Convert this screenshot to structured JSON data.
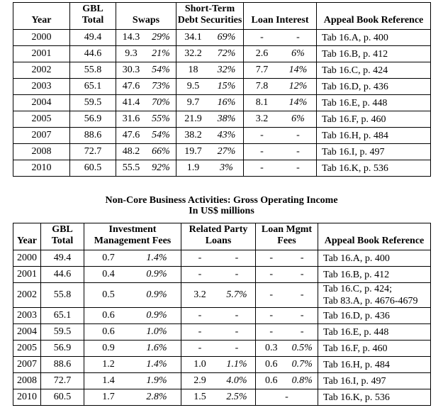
{
  "document": {
    "second_table_title": [
      "Non-Core Business Activities: Gross Operating Income",
      "In US$ millions"
    ]
  },
  "tables": [
    {
      "id": "table-gross-trading-income",
      "columns": [
        {
          "key": "year",
          "label": [
            "Year"
          ],
          "type": "text"
        },
        {
          "key": "gbl_total",
          "label": [
            "GBL",
            "Total"
          ],
          "type": "text"
        },
        {
          "key": "swaps",
          "label": [
            "Swaps"
          ],
          "type": "pair"
        },
        {
          "key": "short_term_debt_securities",
          "label": [
            "Short-Term",
            "Debt Securities"
          ],
          "type": "pair"
        },
        {
          "key": "loan_interest",
          "label": [
            "Loan Interest"
          ],
          "type": "pair"
        },
        {
          "key": "reference",
          "label": [
            "Appeal Book Reference"
          ],
          "type": "ref"
        }
      ],
      "rows": [
        {
          "year": "2000",
          "gbl_total": "49.4",
          "pairs": [
            [
              "14.3",
              "29%"
            ],
            [
              "34.1",
              "69%"
            ],
            [
              "-",
              "-"
            ]
          ],
          "reference": [
            "Tab 16.A, p. 400"
          ]
        },
        {
          "year": "2001",
          "gbl_total": "44.6",
          "pairs": [
            [
              "9.3",
              "21%"
            ],
            [
              "32.2",
              "72%"
            ],
            [
              "2.6",
              "6%"
            ]
          ],
          "reference": [
            "Tab 16.B, p. 412"
          ]
        },
        {
          "year": "2002",
          "gbl_total": "55.8",
          "pairs": [
            [
              "30.3",
              "54%"
            ],
            [
              "18",
              "32%"
            ],
            [
              "7.7",
              "14%"
            ]
          ],
          "reference": [
            "Tab 16.C, p. 424"
          ]
        },
        {
          "year": "2003",
          "gbl_total": "65.1",
          "pairs": [
            [
              "47.6",
              "73%"
            ],
            [
              "9.5",
              "15%"
            ],
            [
              "7.8",
              "12%"
            ]
          ],
          "reference": [
            "Tab 16.D, p. 436"
          ]
        },
        {
          "year": "2004",
          "gbl_total": "59.5",
          "pairs": [
            [
              "41.4",
              "70%"
            ],
            [
              "9.7",
              "16%"
            ],
            [
              "8.1",
              "14%"
            ]
          ],
          "reference": [
            "Tab 16.E, p. 448"
          ]
        },
        {
          "year": "2005",
          "gbl_total": "56.9",
          "pairs": [
            [
              "31.6",
              "55%"
            ],
            [
              "21.9",
              "38%"
            ],
            [
              "3.2",
              "6%"
            ]
          ],
          "reference": [
            "Tab 16.F, p. 460"
          ]
        },
        {
          "year": "2007",
          "gbl_total": "88.6",
          "pairs": [
            [
              "47.6",
              "54%"
            ],
            [
              "38.2",
              "43%"
            ],
            [
              "-",
              "-"
            ]
          ],
          "reference": [
            "Tab 16.H, p. 484"
          ]
        },
        {
          "year": "2008",
          "gbl_total": "72.7",
          "pairs": [
            [
              "48.2",
              "66%"
            ],
            [
              "19.7",
              "27%"
            ],
            [
              "-",
              "-"
            ]
          ],
          "reference": [
            "Tab 16.I, p. 497"
          ]
        },
        {
          "year": "2010",
          "gbl_total": "60.5",
          "pairs": [
            [
              "55.5",
              "92%"
            ],
            [
              "1.9",
              "3%"
            ],
            [
              "-",
              "-"
            ]
          ],
          "reference": [
            "Tab 16.K, p. 536"
          ]
        }
      ]
    },
    {
      "id": "table-gross-operating-income",
      "columns": [
        {
          "key": "year",
          "label": [
            "Year"
          ],
          "type": "text"
        },
        {
          "key": "gbl_total",
          "label": [
            "GBL",
            "Total"
          ],
          "type": "text"
        },
        {
          "key": "investment_management_fees",
          "label": [
            "Investment",
            "Management Fees"
          ],
          "type": "pair"
        },
        {
          "key": "related_party_loans",
          "label": [
            "Related Party",
            "Loans"
          ],
          "type": "pair"
        },
        {
          "key": "loan_mgmt_fees",
          "label": [
            "Loan Mgmt",
            "Fees"
          ],
          "type": "pair"
        },
        {
          "key": "reference",
          "label": [
            "Appeal Book Reference"
          ],
          "type": "ref"
        }
      ],
      "rows": [
        {
          "year": "2000",
          "gbl_total": "49.4",
          "pairs": [
            [
              "0.7",
              "1.4%"
            ],
            [
              "-",
              "-"
            ],
            [
              "-",
              "-"
            ]
          ],
          "reference": [
            "Tab 16.A, p. 400"
          ]
        },
        {
          "year": "2001",
          "gbl_total": "44.6",
          "pairs": [
            [
              "0.4",
              "0.9%"
            ],
            [
              "-",
              "-"
            ],
            [
              "-",
              "-"
            ]
          ],
          "reference": [
            "Tab 16.B, p. 412"
          ]
        },
        {
          "year": "2002",
          "gbl_total": "55.8",
          "pairs": [
            [
              "0.5",
              "0.9%"
            ],
            [
              "3.2",
              "5.7%"
            ],
            [
              "-",
              "-"
            ]
          ],
          "reference": [
            "Tab 16.C, p. 424;",
            "Tab 83.A, p. 4676-4679"
          ]
        },
        {
          "year": "2003",
          "gbl_total": "65.1",
          "pairs": [
            [
              "0.6",
              "0.9%"
            ],
            [
              "-",
              "-"
            ],
            [
              "-",
              "-"
            ]
          ],
          "reference": [
            "Tab 16.D, p. 436"
          ]
        },
        {
          "year": "2004",
          "gbl_total": "59.5",
          "pairs": [
            [
              "0.6",
              "1.0%"
            ],
            [
              "-",
              "-"
            ],
            [
              "-",
              "-"
            ]
          ],
          "reference": [
            "Tab 16.E, p. 448"
          ]
        },
        {
          "year": "2005",
          "gbl_total": "56.9",
          "pairs": [
            [
              "0.9",
              "1.6%"
            ],
            [
              "-",
              "-"
            ],
            [
              "0.3",
              "0.5%"
            ]
          ],
          "reference": [
            "Tab 16.F, p. 460"
          ]
        },
        {
          "year": "2007",
          "gbl_total": "88.6",
          "pairs": [
            [
              "1.2",
              "1.4%"
            ],
            [
              "1.0",
              "1.1%"
            ],
            [
              "0.6",
              "0.7%"
            ]
          ],
          "reference": [
            "Tab 16.H, p. 484"
          ]
        },
        {
          "year": "2008",
          "gbl_total": "72.7",
          "pairs": [
            [
              "1.4",
              "1.9%"
            ],
            [
              "2.9",
              "4.0%"
            ],
            [
              "0.6",
              "0.8%"
            ]
          ],
          "reference": [
            "Tab 16.I, p. 497"
          ]
        },
        {
          "year": "2010",
          "gbl_total": "60.5",
          "pairs": [
            [
              "1.7",
              "2.8%"
            ],
            [
              "1.5",
              "2.5%"
            ],
            [
              "-"
            ]
          ],
          "reference": [
            "Tab 16.K, p. 536"
          ]
        }
      ]
    }
  ]
}
